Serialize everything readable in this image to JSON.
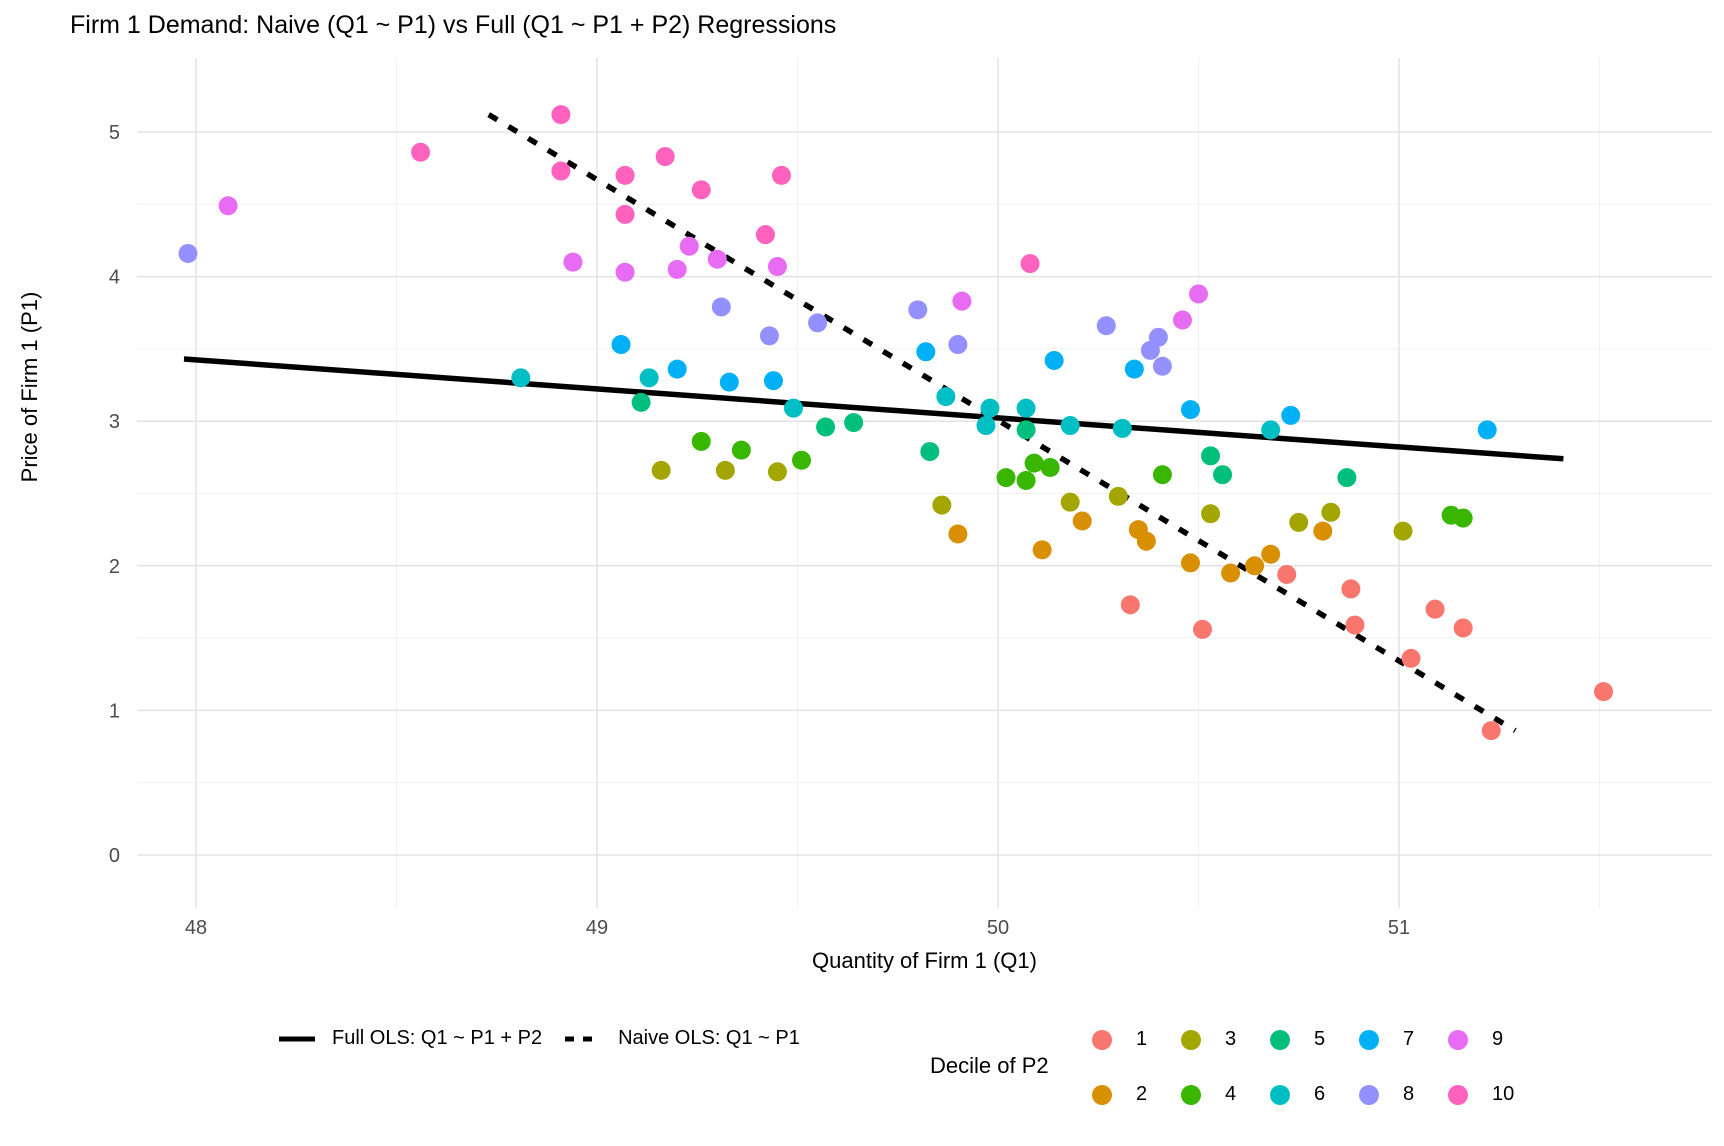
{
  "chart_data": {
    "type": "scatter",
    "title": "Firm 1 Demand: Naive (Q1 ~ P1) vs Full (Q1 ~ P1 + P2) Regressions",
    "xlabel": "Quantity of Firm 1 (Q1)",
    "ylabel": "Price of Firm 1 (P1)",
    "x_ticks": [
      48,
      49,
      50,
      51
    ],
    "y_ticks": [
      0,
      1,
      2,
      3,
      4,
      5
    ],
    "xlim": [
      47.85,
      51.78
    ],
    "ylim": [
      -0.36,
      5.51
    ],
    "grid": true,
    "legend_position": "bottom",
    "axis_text_color": "#4D4D4D",
    "grid_major_color": "#E3E3E3",
    "grid_minor_color": "#F0F0F0",
    "point_radius": 9.5,
    "color_legend_title": "Decile of P2",
    "lines": [
      {
        "name": "Full OLS: Q1 ~ P1 + P2",
        "style": "solid",
        "x": [
          47.97,
          51.41
        ],
        "y": [
          3.43,
          2.74
        ]
      },
      {
        "name": "Naive OLS: Q1 ~ P1",
        "style": "dashed",
        "x": [
          48.73,
          51.29
        ],
        "y": [
          5.12,
          0.86
        ]
      }
    ],
    "series": [
      {
        "name": "1",
        "color": "#F8766D",
        "points": [
          [
            50.33,
            1.73
          ],
          [
            50.51,
            1.56
          ],
          [
            50.72,
            1.94
          ],
          [
            50.88,
            1.84
          ],
          [
            50.89,
            1.59
          ],
          [
            51.03,
            1.36
          ],
          [
            51.09,
            1.7
          ],
          [
            51.16,
            1.57
          ],
          [
            51.23,
            0.86
          ],
          [
            51.51,
            1.13
          ]
        ]
      },
      {
        "name": "2",
        "color": "#D89000",
        "points": [
          [
            49.9,
            2.22
          ],
          [
            50.11,
            2.11
          ],
          [
            50.21,
            2.31
          ],
          [
            50.35,
            2.25
          ],
          [
            50.37,
            2.17
          ],
          [
            50.48,
            2.02
          ],
          [
            50.58,
            1.95
          ],
          [
            50.64,
            2.0
          ],
          [
            50.68,
            2.08
          ],
          [
            50.81,
            2.24
          ]
        ]
      },
      {
        "name": "3",
        "color": "#A3A500",
        "points": [
          [
            49.16,
            2.66
          ],
          [
            49.32,
            2.66
          ],
          [
            49.45,
            2.65
          ],
          [
            49.86,
            2.42
          ],
          [
            50.18,
            2.44
          ],
          [
            50.3,
            2.48
          ],
          [
            50.53,
            2.36
          ],
          [
            50.75,
            2.3
          ],
          [
            50.83,
            2.37
          ],
          [
            51.01,
            2.24
          ]
        ]
      },
      {
        "name": "4",
        "color": "#39B600",
        "points": [
          [
            49.26,
            2.86
          ],
          [
            49.36,
            2.8
          ],
          [
            49.51,
            2.73
          ],
          [
            50.02,
            2.61
          ],
          [
            50.07,
            2.59
          ],
          [
            50.09,
            2.71
          ],
          [
            50.13,
            2.68
          ],
          [
            50.41,
            2.63
          ],
          [
            51.13,
            2.35
          ],
          [
            51.16,
            2.33
          ]
        ]
      },
      {
        "name": "5",
        "color": "#00BF7D",
        "points": [
          [
            49.11,
            3.13
          ],
          [
            49.57,
            2.96
          ],
          [
            49.64,
            2.99
          ],
          [
            49.83,
            2.79
          ],
          [
            50.07,
            2.94
          ],
          [
            50.53,
            2.76
          ],
          [
            50.56,
            2.63
          ],
          [
            50.87,
            2.61
          ]
        ]
      },
      {
        "name": "6",
        "color": "#00BFC4",
        "points": [
          [
            48.81,
            3.3
          ],
          [
            49.13,
            3.3
          ],
          [
            49.49,
            3.09
          ],
          [
            49.87,
            3.17
          ],
          [
            49.97,
            2.97
          ],
          [
            49.98,
            3.09
          ],
          [
            50.07,
            3.09
          ],
          [
            50.18,
            2.97
          ],
          [
            50.31,
            2.95
          ],
          [
            50.68,
            2.94
          ]
        ]
      },
      {
        "name": "7",
        "color": "#00B0F6",
        "points": [
          [
            49.06,
            3.53
          ],
          [
            49.2,
            3.36
          ],
          [
            49.33,
            3.27
          ],
          [
            49.44,
            3.28
          ],
          [
            49.82,
            3.48
          ],
          [
            50.14,
            3.42
          ],
          [
            50.34,
            3.36
          ],
          [
            50.48,
            3.08
          ],
          [
            50.73,
            3.04
          ],
          [
            51.22,
            2.94
          ]
        ]
      },
      {
        "name": "8",
        "color": "#9590FF",
        "points": [
          [
            47.98,
            4.16
          ],
          [
            49.31,
            3.79
          ],
          [
            49.43,
            3.59
          ],
          [
            49.55,
            3.68
          ],
          [
            49.8,
            3.77
          ],
          [
            49.9,
            3.53
          ],
          [
            50.27,
            3.66
          ],
          [
            50.38,
            3.49
          ],
          [
            50.4,
            3.58
          ],
          [
            50.41,
            3.38
          ]
        ]
      },
      {
        "name": "9",
        "color": "#E76BF3",
        "points": [
          [
            48.08,
            4.49
          ],
          [
            48.94,
            4.1
          ],
          [
            49.07,
            4.03
          ],
          [
            49.2,
            4.05
          ],
          [
            49.23,
            4.21
          ],
          [
            49.3,
            4.12
          ],
          [
            49.45,
            4.07
          ],
          [
            49.91,
            3.83
          ],
          [
            50.46,
            3.7
          ],
          [
            50.5,
            3.88
          ]
        ]
      },
      {
        "name": "10",
        "color": "#FF62BC",
        "points": [
          [
            48.56,
            4.86
          ],
          [
            48.91,
            5.12
          ],
          [
            48.91,
            4.73
          ],
          [
            49.07,
            4.7
          ],
          [
            49.07,
            4.43
          ],
          [
            49.17,
            4.83
          ],
          [
            49.26,
            4.6
          ],
          [
            49.42,
            4.29
          ],
          [
            49.46,
            4.7
          ],
          [
            50.08,
            4.09
          ]
        ]
      }
    ]
  }
}
